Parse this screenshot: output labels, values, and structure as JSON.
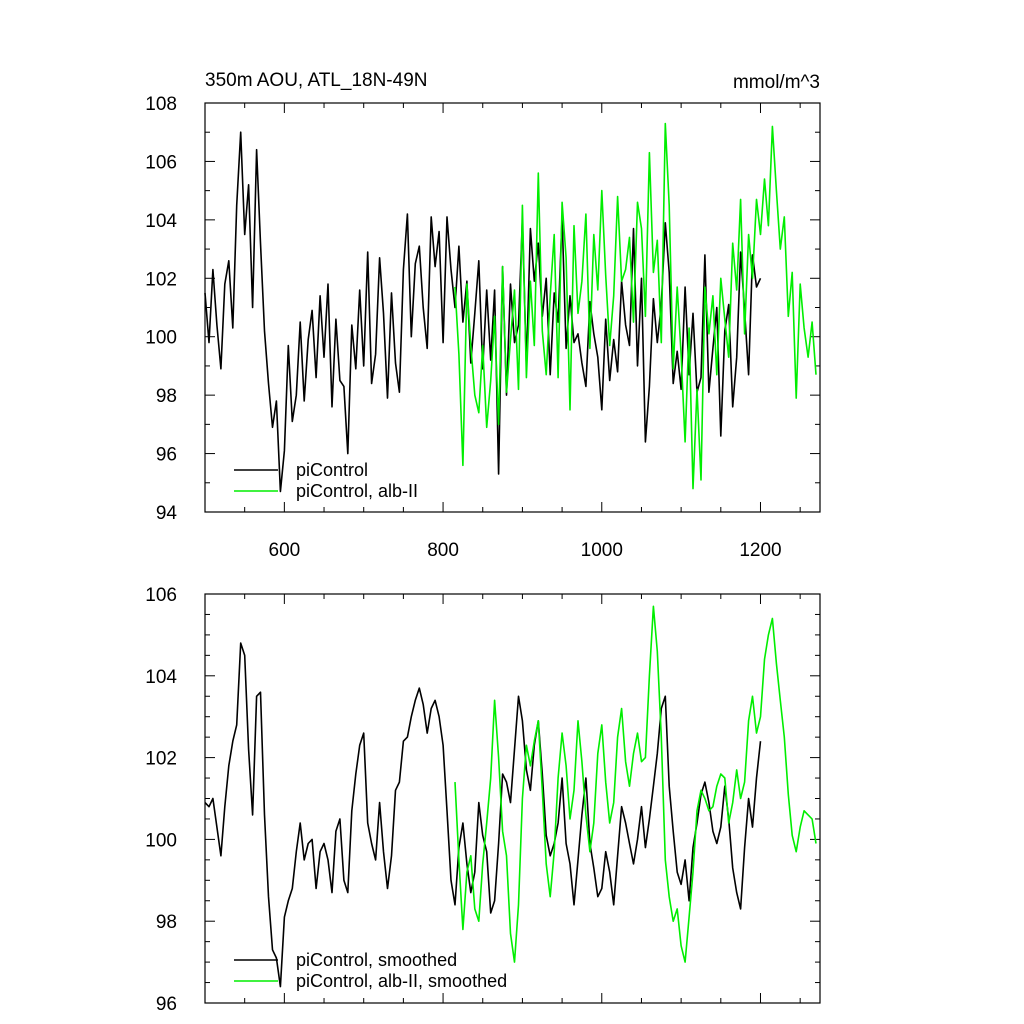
{
  "chart_data": [
    {
      "type": "line",
      "title": "350m AOU, ATL_18N-49N",
      "units": "mmol/m^3",
      "xlim": [
        500,
        1275
      ],
      "ylim": [
        94,
        108
      ],
      "xticks": [
        600,
        800,
        1000,
        1200
      ],
      "xtick_labels": [
        "600",
        "800",
        "1000",
        "1200"
      ],
      "yticks": [
        94,
        96,
        98,
        100,
        102,
        104,
        106,
        108
      ],
      "ytick_labels": [
        "94",
        "96",
        "98",
        "100",
        "102",
        "104",
        "106",
        "108"
      ],
      "legend_position": "bottom-left",
      "series": [
        {
          "name": "piControl",
          "color": "#000000",
          "x": [
            500,
            505,
            510,
            515,
            520,
            525,
            530,
            535,
            540,
            545,
            550,
            555,
            560,
            565,
            570,
            575,
            580,
            585,
            590,
            595,
            600,
            605,
            610,
            615,
            620,
            625,
            630,
            635,
            640,
            645,
            650,
            655,
            660,
            665,
            670,
            675,
            680,
            685,
            690,
            695,
            700,
            705,
            710,
            715,
            720,
            725,
            730,
            735,
            740,
            745,
            750,
            755,
            760,
            765,
            770,
            775,
            780,
            785,
            790,
            795,
            800,
            805,
            810,
            815,
            820,
            825,
            830,
            835,
            840,
            845,
            850,
            855,
            860,
            865,
            870,
            875,
            880,
            885,
            890,
            895,
            900,
            905,
            910,
            915,
            920,
            925,
            930,
            935,
            940,
            945,
            950,
            955,
            960,
            965,
            970,
            975,
            980,
            985,
            990,
            995,
            1000,
            1005,
            1010,
            1015,
            1020,
            1025,
            1030,
            1035,
            1040,
            1045,
            1050,
            1055,
            1060,
            1065,
            1070,
            1075,
            1080,
            1085,
            1090,
            1095,
            1100,
            1105,
            1110,
            1115,
            1120,
            1125,
            1130,
            1135,
            1140,
            1145,
            1150,
            1155,
            1160,
            1165,
            1170,
            1175,
            1180,
            1185,
            1190,
            1195,
            1200
          ],
          "y": [
            101.5,
            99.8,
            102.3,
            100.4,
            98.9,
            101.8,
            102.6,
            100.3,
            104.5,
            107.0,
            103.5,
            105.2,
            101.0,
            106.4,
            103.2,
            100.2,
            98.4,
            96.9,
            97.8,
            94.7,
            96.1,
            99.7,
            97.1,
            98.0,
            100.5,
            97.8,
            99.9,
            100.9,
            98.6,
            101.4,
            99.3,
            101.8,
            97.6,
            100.6,
            98.5,
            98.3,
            96.0,
            100.4,
            98.9,
            101.6,
            99.0,
            102.9,
            98.4,
            99.4,
            102.7,
            100.8,
            97.9,
            101.5,
            99.1,
            98.1,
            102.3,
            104.2,
            100.0,
            102.5,
            103.1,
            101.0,
            99.6,
            104.1,
            102.4,
            103.6,
            99.8,
            104.1,
            102.3,
            101.0,
            103.1,
            100.5,
            101.9,
            99.1,
            100.8,
            102.6,
            98.9,
            101.6,
            99.2,
            101.6,
            95.3,
            102.4,
            98.0,
            101.8,
            99.8,
            100.4,
            104.0,
            99.0,
            103.7,
            101.9,
            103.2,
            100.7,
            102.0,
            98.7,
            101.5,
            100.5,
            104.1,
            99.6,
            101.4,
            99.8,
            100.1,
            99.1,
            98.3,
            101.2,
            100.1,
            99.3,
            97.5,
            100.6,
            98.5,
            99.9,
            98.8,
            101.9,
            100.4,
            99.7,
            103.7,
            99.0,
            102.0,
            96.4,
            98.3,
            101.3,
            99.8,
            101.1,
            103.9,
            102.2,
            98.4,
            99.5,
            98.2,
            101.7,
            98.7,
            100.8,
            98.1,
            98.6,
            102.8,
            98.1,
            99.6,
            101.0,
            96.6,
            100.2,
            101.1,
            97.6,
            99.3,
            102.9,
            100.9,
            98.7,
            102.8,
            101.7,
            102.0
          ]
        },
        {
          "name": "piControl, alb-II",
          "color": "#00ee00",
          "x": [
            815,
            820,
            825,
            830,
            835,
            840,
            845,
            850,
            855,
            860,
            865,
            870,
            875,
            880,
            885,
            890,
            895,
            900,
            905,
            910,
            915,
            920,
            925,
            930,
            935,
            940,
            945,
            950,
            955,
            960,
            965,
            970,
            975,
            980,
            985,
            990,
            995,
            1000,
            1005,
            1010,
            1015,
            1020,
            1025,
            1030,
            1035,
            1040,
            1045,
            1050,
            1055,
            1060,
            1065,
            1070,
            1075,
            1080,
            1085,
            1090,
            1095,
            1100,
            1105,
            1110,
            1115,
            1120,
            1125,
            1130,
            1135,
            1140,
            1145,
            1150,
            1155,
            1160,
            1165,
            1170,
            1175,
            1180,
            1185,
            1190,
            1195,
            1200,
            1205,
            1210,
            1215,
            1220,
            1225,
            1230,
            1235,
            1240,
            1245,
            1250,
            1255,
            1260,
            1265,
            1270
          ],
          "y": [
            101.7,
            99.4,
            95.6,
            101.8,
            99.7,
            98.0,
            97.4,
            99.7,
            96.9,
            98.5,
            100.7,
            97.0,
            102.4,
            98.1,
            99.9,
            101.6,
            98.2,
            104.5,
            98.6,
            101.9,
            99.7,
            105.6,
            100.2,
            98.7,
            101.4,
            103.5,
            98.6,
            104.6,
            102.7,
            97.5,
            103.8,
            100.8,
            101.9,
            104.2,
            99.6,
            103.5,
            101.6,
            105.0,
            102.1,
            99.7,
            101.4,
            104.8,
            101.9,
            102.3,
            103.4,
            100.5,
            104.6,
            103.7,
            100.7,
            106.3,
            102.2,
            103.3,
            99.8,
            107.3,
            104.5,
            98.9,
            101.7,
            99.4,
            96.4,
            100.3,
            94.8,
            98.2,
            95.1,
            101.7,
            100.1,
            101.4,
            98.7,
            102.0,
            100.6,
            99.3,
            103.2,
            101.6,
            104.7,
            100.1,
            103.5,
            102.0,
            104.7,
            103.5,
            105.4,
            103.8,
            107.2,
            105.0,
            103.0,
            104.1,
            100.7,
            102.2,
            97.9,
            101.8,
            100.3,
            99.3,
            100.5,
            98.7
          ]
        }
      ]
    },
    {
      "type": "line",
      "xlim": [
        500,
        1275
      ],
      "ylim": [
        96,
        106
      ],
      "xticks": [
        600,
        800,
        1000,
        1200
      ],
      "yticks": [
        96,
        98,
        100,
        102,
        104,
        106
      ],
      "ytick_labels": [
        "96",
        "98",
        "100",
        "102",
        "104",
        "106"
      ],
      "legend_position": "bottom-left",
      "series": [
        {
          "name": "piControl, smoothed",
          "color": "#000000",
          "x": [
            500,
            505,
            510,
            515,
            520,
            525,
            530,
            535,
            540,
            545,
            550,
            555,
            560,
            565,
            570,
            575,
            580,
            585,
            590,
            595,
            600,
            605,
            610,
            615,
            620,
            625,
            630,
            635,
            640,
            645,
            650,
            655,
            660,
            665,
            670,
            675,
            680,
            685,
            690,
            695,
            700,
            705,
            710,
            715,
            720,
            725,
            730,
            735,
            740,
            745,
            750,
            755,
            760,
            765,
            770,
            775,
            780,
            785,
            790,
            795,
            800,
            805,
            810,
            815,
            820,
            825,
            830,
            835,
            840,
            845,
            850,
            855,
            860,
            865,
            870,
            875,
            880,
            885,
            890,
            895,
            900,
            905,
            910,
            915,
            920,
            925,
            930,
            935,
            940,
            945,
            950,
            955,
            960,
            965,
            970,
            975,
            980,
            985,
            990,
            995,
            1000,
            1005,
            1010,
            1015,
            1020,
            1025,
            1030,
            1035,
            1040,
            1045,
            1050,
            1055,
            1060,
            1065,
            1070,
            1075,
            1080,
            1085,
            1090,
            1095,
            1100,
            1105,
            1110,
            1115,
            1120,
            1125,
            1130,
            1135,
            1140,
            1145,
            1150,
            1155,
            1160,
            1165,
            1170,
            1175,
            1180,
            1185,
            1190,
            1195,
            1200
          ],
          "y": [
            100.9,
            100.8,
            101.0,
            100.3,
            99.6,
            100.8,
            101.8,
            102.4,
            102.8,
            104.8,
            104.5,
            102.2,
            100.6,
            103.5,
            103.6,
            100.6,
            98.6,
            97.3,
            97.1,
            96.4,
            98.1,
            98.5,
            98.8,
            99.7,
            100.4,
            99.5,
            99.9,
            100.0,
            98.8,
            99.7,
            99.9,
            99.5,
            98.7,
            100.2,
            100.5,
            99.0,
            98.7,
            100.7,
            101.6,
            102.3,
            102.6,
            100.4,
            99.9,
            99.5,
            100.9,
            99.7,
            98.8,
            99.6,
            101.2,
            101.4,
            102.4,
            102.5,
            103.0,
            103.4,
            103.7,
            103.3,
            102.6,
            103.2,
            103.4,
            103.0,
            102.3,
            100.7,
            99.0,
            98.4,
            99.8,
            100.4,
            99.4,
            98.7,
            99.2,
            100.9,
            100.1,
            99.7,
            98.2,
            98.5,
            99.9,
            101.6,
            101.4,
            100.9,
            102.2,
            103.5,
            102.9,
            101.7,
            101.2,
            102.3,
            102.9,
            101.6,
            100.1,
            99.6,
            99.9,
            100.4,
            101.5,
            99.9,
            99.4,
            98.4,
            99.5,
            100.6,
            101.5,
            99.9,
            99.3,
            98.6,
            98.8,
            99.7,
            99.2,
            98.4,
            99.6,
            100.8,
            100.4,
            99.9,
            99.4,
            100.0,
            100.8,
            99.8,
            100.5,
            101.3,
            102.1,
            103.2,
            103.5,
            101.3,
            100.2,
            99.2,
            98.9,
            99.5,
            98.5,
            99.8,
            100.4,
            101.1,
            101.4,
            100.9,
            100.2,
            99.9,
            100.3,
            101.3,
            100.5,
            99.3,
            98.7,
            98.3,
            99.8,
            101.0,
            100.3,
            101.5,
            102.4
          ]
        },
        {
          "name": "piControl, alb-II, smoothed",
          "color": "#00ee00",
          "x": [
            815,
            820,
            825,
            830,
            835,
            840,
            845,
            850,
            855,
            860,
            865,
            870,
            875,
            880,
            885,
            890,
            895,
            900,
            905,
            910,
            915,
            920,
            925,
            930,
            935,
            940,
            945,
            950,
            955,
            960,
            965,
            970,
            975,
            980,
            985,
            990,
            995,
            1000,
            1005,
            1010,
            1015,
            1020,
            1025,
            1030,
            1035,
            1040,
            1045,
            1050,
            1055,
            1060,
            1065,
            1070,
            1075,
            1080,
            1085,
            1090,
            1095,
            1100,
            1105,
            1110,
            1115,
            1120,
            1125,
            1130,
            1135,
            1140,
            1145,
            1150,
            1155,
            1160,
            1165,
            1170,
            1175,
            1180,
            1185,
            1190,
            1195,
            1200,
            1205,
            1210,
            1215,
            1220,
            1225,
            1230,
            1235,
            1240,
            1245,
            1250,
            1255,
            1260,
            1265,
            1270
          ],
          "y": [
            101.4,
            99.5,
            97.8,
            99.2,
            99.6,
            98.3,
            98.0,
            99.4,
            100.4,
            101.5,
            103.4,
            102.0,
            100.2,
            99.6,
            97.7,
            97.0,
            98.4,
            101.0,
            102.3,
            101.8,
            102.4,
            102.9,
            101.2,
            99.4,
            98.6,
            99.7,
            101.5,
            102.6,
            101.8,
            100.5,
            101.2,
            102.9,
            101.9,
            100.6,
            99.7,
            100.4,
            102.1,
            102.8,
            101.4,
            100.4,
            100.9,
            102.5,
            103.2,
            101.9,
            101.3,
            102.1,
            102.6,
            101.9,
            102.0,
            104.0,
            105.7,
            104.6,
            102.5,
            99.5,
            98.6,
            98.0,
            98.3,
            97.4,
            97.0,
            98.1,
            99.2,
            100.7,
            101.2,
            101.0,
            100.7,
            100.8,
            101.3,
            101.6,
            101.5,
            100.4,
            100.9,
            101.7,
            101.0,
            101.4,
            102.9,
            103.5,
            102.6,
            103.0,
            104.4,
            105.0,
            105.4,
            104.3,
            103.4,
            102.5,
            101.1,
            100.1,
            99.7,
            100.3,
            100.7,
            100.6,
            100.5,
            99.9
          ]
        }
      ]
    }
  ]
}
